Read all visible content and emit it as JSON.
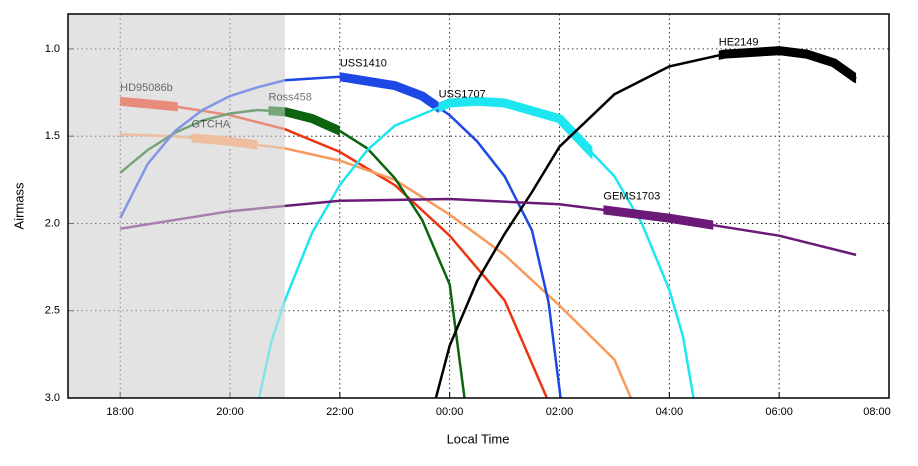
{
  "chart_data": {
    "type": "line",
    "xlabel": "Local Time",
    "ylabel": "Airmass",
    "xlim": [
      17.05,
      32.0
    ],
    "xticks": [
      {
        "value": 18,
        "label": "18:00"
      },
      {
        "value": 20,
        "label": "20:00"
      },
      {
        "value": 22,
        "label": "22:00"
      },
      {
        "value": 24,
        "label": "00:00"
      },
      {
        "value": 26,
        "label": "02:00"
      },
      {
        "value": 28,
        "label": "04:00"
      },
      {
        "value": 30,
        "label": "06:00"
      },
      {
        "value": 32,
        "label": "08:00"
      }
    ],
    "ylim": [
      0.8,
      3.0
    ],
    "y_inverted": true,
    "yticks": [
      {
        "value": 1,
        "label": "1.0"
      },
      1.5,
      {
        "value": 2,
        "label": "2.0"
      },
      2.5,
      {
        "value": 3,
        "label": "3.0"
      }
    ],
    "grid": true,
    "shade_xrange": [
      17.05,
      21.0
    ],
    "series": [
      {
        "name": "HD95086b",
        "color": "#ee3311",
        "window": [
          18.0,
          19.05
        ],
        "x": [
          18,
          19,
          20,
          21,
          22,
          23,
          24,
          25,
          25.77
        ],
        "values": [
          1.3,
          1.33,
          1.38,
          1.46,
          1.59,
          1.78,
          2.07,
          2.44,
          3.0
        ]
      },
      {
        "name": "GTCHA",
        "color": "#f79a5c",
        "window": [
          19.3,
          20.5
        ],
        "x": [
          18,
          19,
          20,
          21,
          22,
          23,
          24,
          25,
          26,
          27,
          27.3
        ],
        "values": [
          1.49,
          1.5,
          1.53,
          1.57,
          1.64,
          1.75,
          1.95,
          2.18,
          2.47,
          2.78,
          3.0
        ]
      },
      {
        "name": "Ross458",
        "color": "#0d6410",
        "window": [
          20.7,
          22.0
        ],
        "x": [
          18,
          18.5,
          19,
          19.5,
          20,
          20.5,
          21,
          21.5,
          22,
          22.5,
          23,
          23.5,
          24,
          24.27
        ],
        "values": [
          1.71,
          1.58,
          1.48,
          1.41,
          1.37,
          1.35,
          1.36,
          1.4,
          1.47,
          1.57,
          1.74,
          1.98,
          2.35,
          3.0
        ]
      },
      {
        "name": "USS1410",
        "color": "#1e48e6",
        "window": [
          22.0,
          23.8
        ],
        "x": [
          18,
          18.5,
          19,
          19.5,
          20,
          20.5,
          21,
          22,
          23,
          23.5,
          24,
          24.5,
          25,
          25.5,
          25.8,
          26.02
        ],
        "values": [
          1.97,
          1.66,
          1.47,
          1.35,
          1.27,
          1.22,
          1.18,
          1.16,
          1.21,
          1.27,
          1.38,
          1.53,
          1.73,
          2.04,
          2.45,
          3.0
        ]
      },
      {
        "name": "USS1707",
        "color": "#1ee6f0",
        "window": [
          23.8,
          26.6
        ],
        "x": [
          20.53,
          20.75,
          21,
          21.5,
          22,
          22.5,
          23,
          24,
          24.5,
          25,
          26,
          27,
          27.5,
          28,
          28.25,
          28.44
        ],
        "values": [
          3.0,
          2.68,
          2.44,
          2.05,
          1.78,
          1.58,
          1.44,
          1.31,
          1.3,
          1.31,
          1.4,
          1.73,
          2.0,
          2.38,
          2.65,
          3.0
        ]
      },
      {
        "name": "HE2149",
        "color": "#000000",
        "window": [
          28.9,
          31.4
        ],
        "x": [
          23.75,
          24,
          24.5,
          25,
          25.5,
          26,
          27,
          28,
          29,
          30,
          30.5,
          31,
          31.4
        ],
        "values": [
          3.0,
          2.7,
          2.33,
          2.06,
          1.82,
          1.56,
          1.26,
          1.1,
          1.03,
          1.01,
          1.03,
          1.08,
          1.17
        ]
      },
      {
        "name": "GEMS1703",
        "color": "#6b1a78",
        "window": [
          26.8,
          28.8
        ],
        "x": [
          18,
          20,
          22,
          24,
          26,
          28,
          30,
          31.4
        ],
        "values": [
          2.03,
          1.93,
          1.87,
          1.86,
          1.89,
          1.97,
          2.07,
          2.18
        ]
      }
    ]
  }
}
